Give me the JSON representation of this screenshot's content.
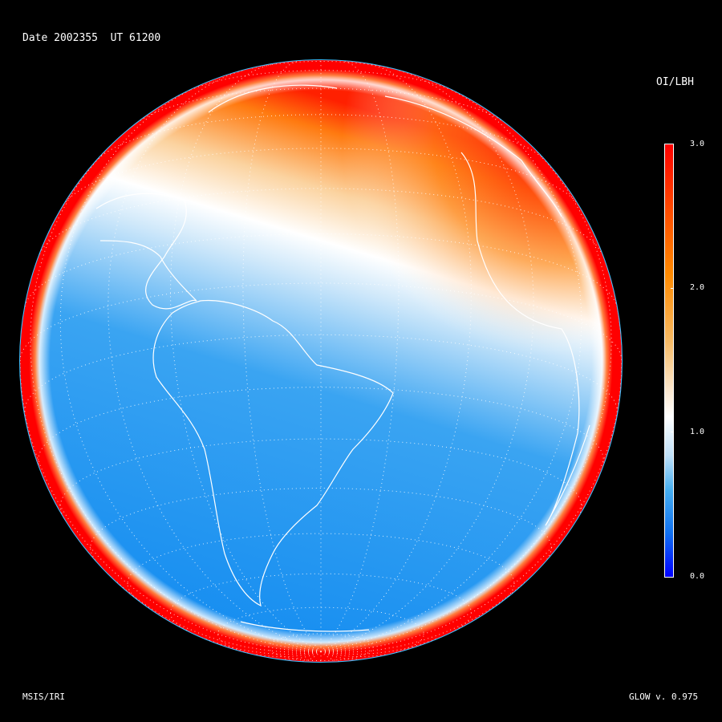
{
  "header": {
    "date_label": "Date 2002355",
    "ut_label": "UT 61200"
  },
  "colorbar": {
    "title": "OI/LBH",
    "ticks": [
      "3.0",
      "2.0",
      "1.0",
      "0.0"
    ],
    "range": [
      0.0,
      3.0
    ],
    "colors": [
      "#0000ff",
      "#45aef0",
      "#ffffff",
      "#ff8a00",
      "#ff0000"
    ]
  },
  "footer": {
    "model_label": "MSIS/IRI",
    "version_label": "GLOW v. 0.975"
  },
  "map": {
    "projection": "orthographic",
    "graticule": "dotted",
    "coastline_color": "#ffffff",
    "rim_color": "#ff0000",
    "interior_color": "#1a90f0"
  }
}
